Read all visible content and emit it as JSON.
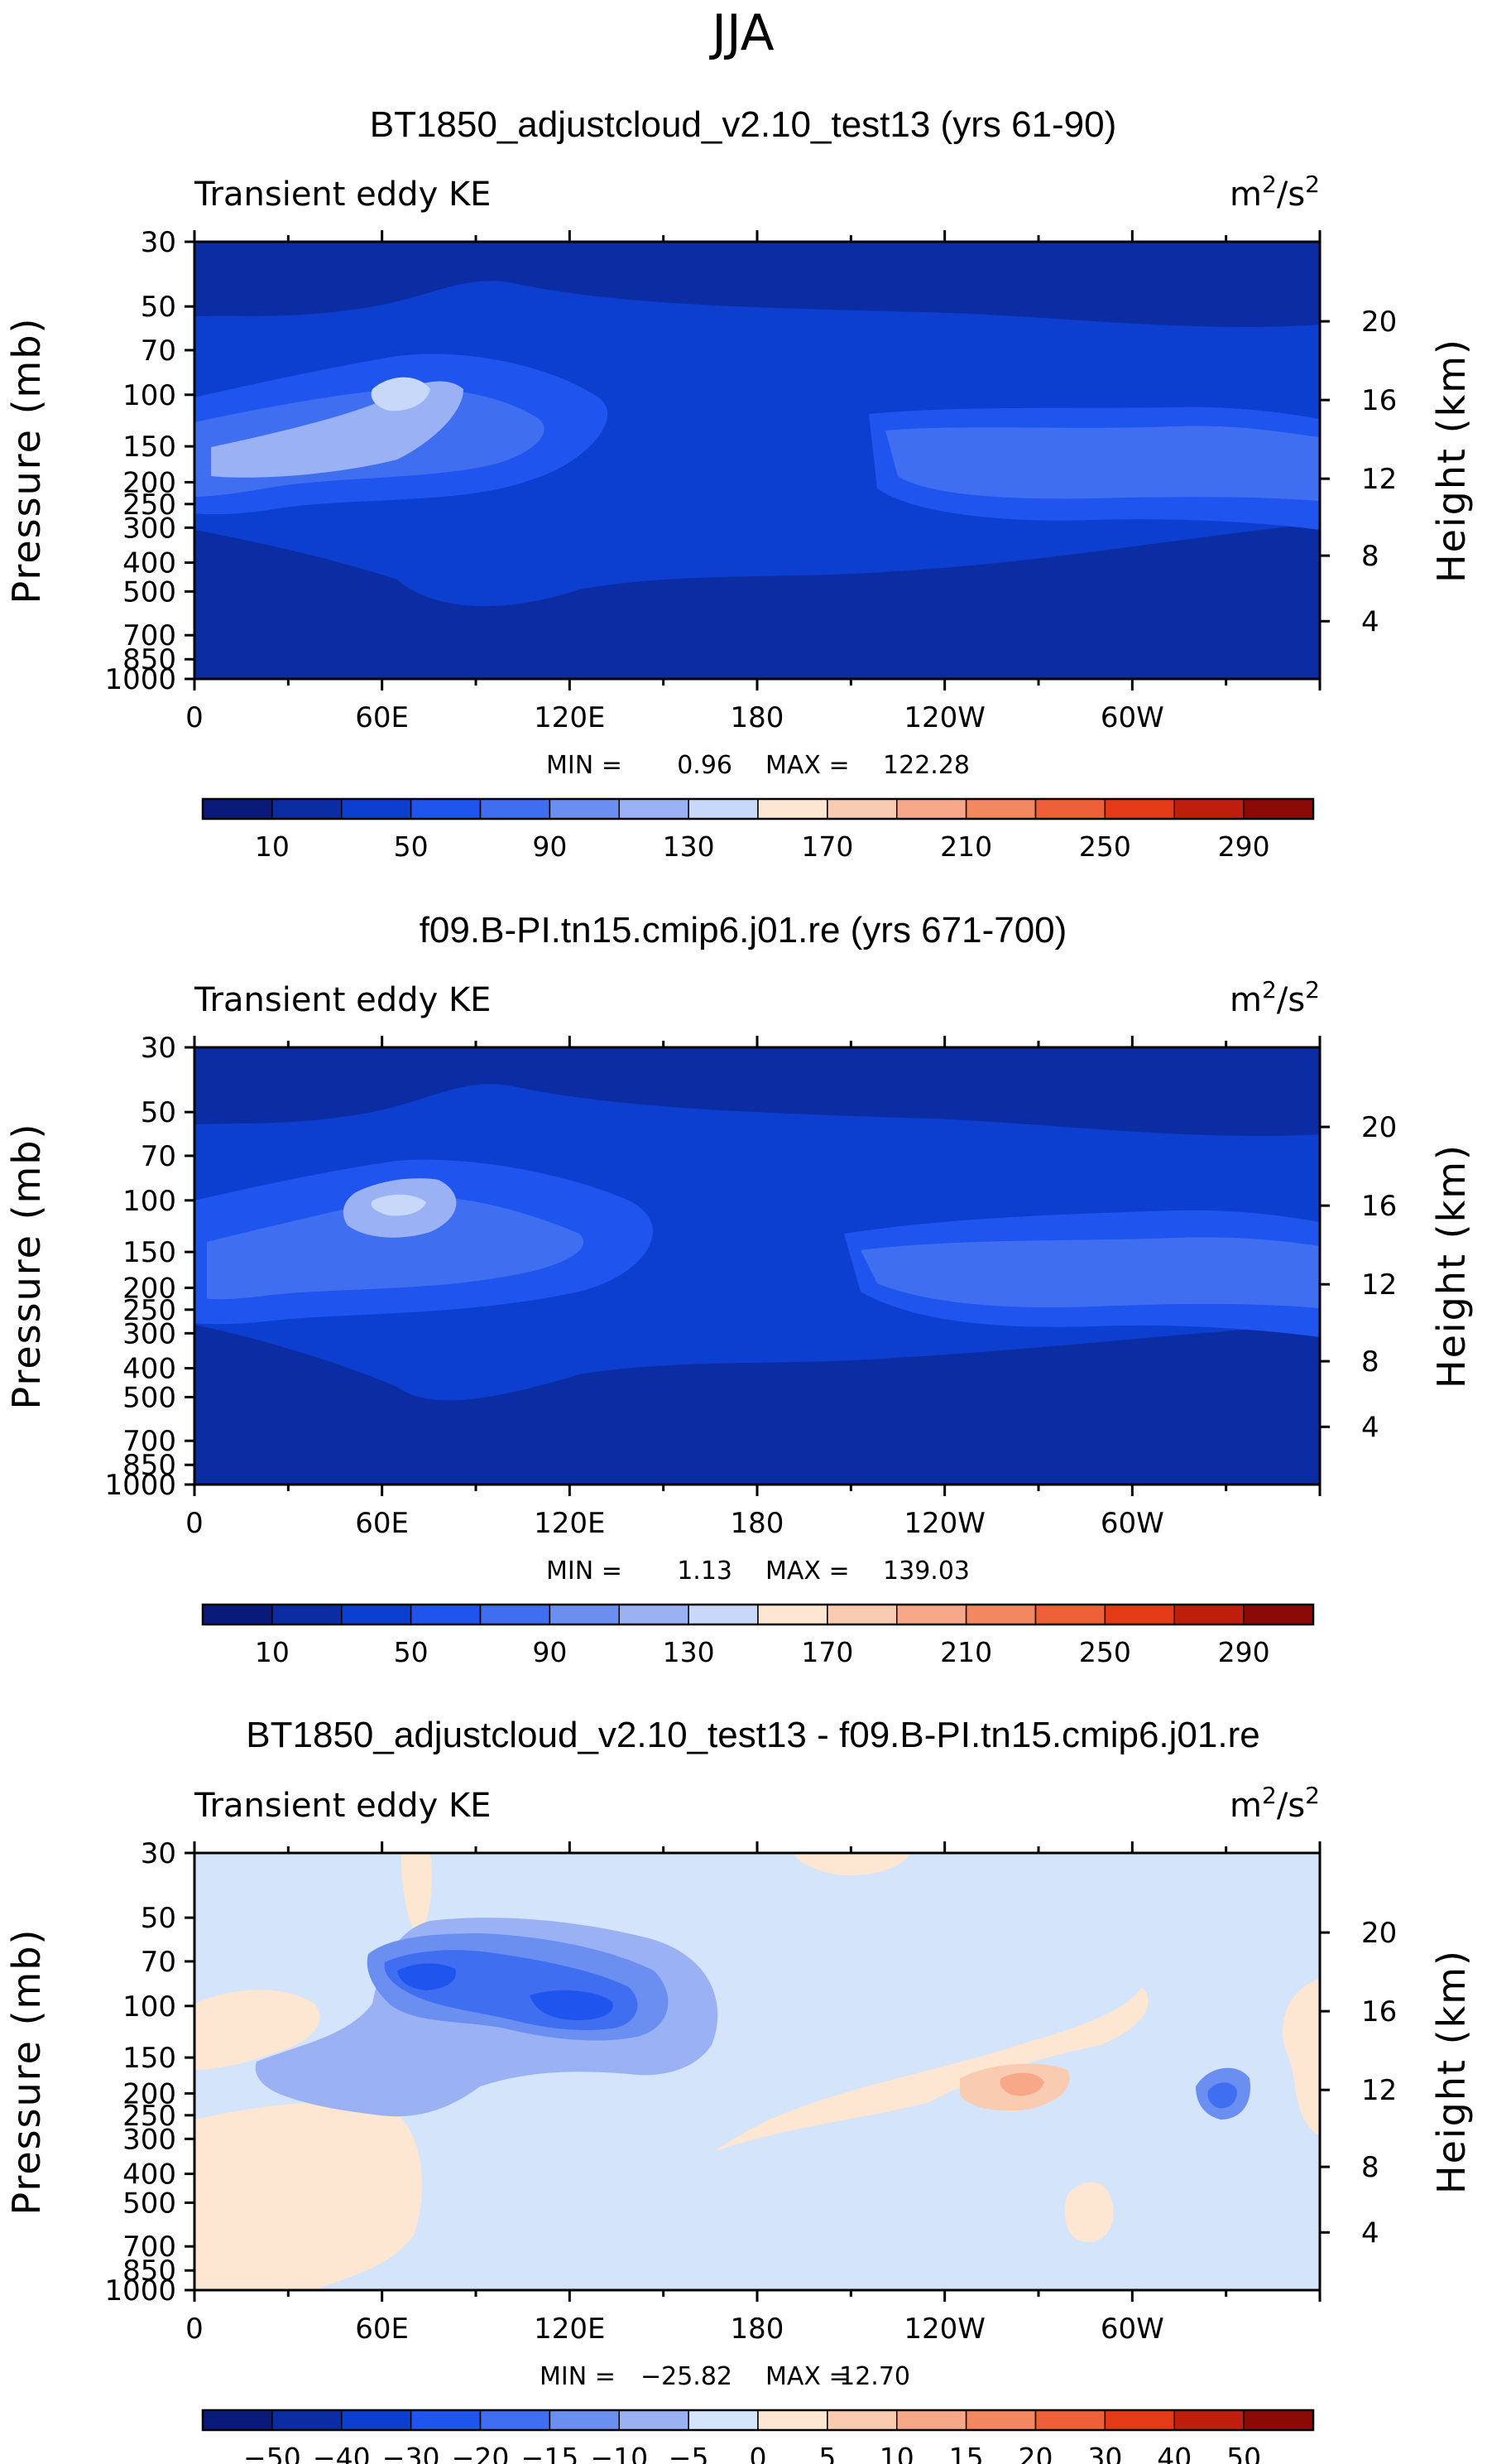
{
  "suptitle": "JJA",
  "chart_data": [
    {
      "type": "heatmap",
      "title": "BT1850_adjustcloud_v2.10_test13 (yrs 61-90)",
      "variable": "Transient eddy KE",
      "units_base": "m",
      "units_exp1": "2",
      "units_mid": "/s",
      "units_exp2": "2",
      "ylabel": "Pressure (mb)",
      "y2label": "Height (km)",
      "yticks": [
        "30",
        "50",
        "70",
        "100",
        "150",
        "200",
        "250",
        "300",
        "400",
        "500",
        "700",
        "850",
        "1000"
      ],
      "y2ticks": [
        "20",
        "16",
        "12",
        "8",
        "4"
      ],
      "xticks": [
        "0",
        "60E",
        "120E",
        "180",
        "120W",
        "60W"
      ],
      "min_label": "MIN =",
      "min_value": "0.96",
      "max_label": "MAX =",
      "max_value": "122.28",
      "colorbar_labels": [
        "10",
        "50",
        "90",
        "130",
        "170",
        "210",
        "250",
        "290"
      ],
      "colorbar_colors": [
        "#0a1a7a",
        "#0b2ca3",
        "#0c3ed0",
        "#1f55ee",
        "#3f6ff0",
        "#6b8ff0",
        "#9ab2f3",
        "#c7d8f8",
        "#fde6d2",
        "#f9cbb0",
        "#f6a888",
        "#f28760",
        "#ee6038",
        "#e53a17",
        "#bf1e0c",
        "#8c0a05"
      ]
    },
    {
      "type": "heatmap",
      "title": "f09.B-PI.tn15.cmip6.j01.re (yrs 671-700)",
      "variable": "Transient eddy KE",
      "units_base": "m",
      "units_exp1": "2",
      "units_mid": "/s",
      "units_exp2": "2",
      "ylabel": "Pressure (mb)",
      "y2label": "Height (km)",
      "yticks": [
        "30",
        "50",
        "70",
        "100",
        "150",
        "200",
        "250",
        "300",
        "400",
        "500",
        "700",
        "850",
        "1000"
      ],
      "y2ticks": [
        "20",
        "16",
        "12",
        "8",
        "4"
      ],
      "xticks": [
        "0",
        "60E",
        "120E",
        "180",
        "120W",
        "60W"
      ],
      "min_label": "MIN =",
      "min_value": "1.13",
      "max_label": "MAX =",
      "max_value": "139.03",
      "colorbar_labels": [
        "10",
        "50",
        "90",
        "130",
        "170",
        "210",
        "250",
        "290"
      ],
      "colorbar_colors": [
        "#0a1a7a",
        "#0b2ca3",
        "#0c3ed0",
        "#1f55ee",
        "#3f6ff0",
        "#6b8ff0",
        "#9ab2f3",
        "#c7d8f8",
        "#fde6d2",
        "#f9cbb0",
        "#f6a888",
        "#f28760",
        "#ee6038",
        "#e53a17",
        "#bf1e0c",
        "#8c0a05"
      ]
    },
    {
      "type": "heatmap",
      "title": "BT1850_adjustcloud_v2.10_test13 - f09.B-PI.tn15.cmip6.j01.re",
      "variable": "Transient eddy KE",
      "units_base": "m",
      "units_exp1": "2",
      "units_mid": "/s",
      "units_exp2": "2",
      "ylabel": "Pressure (mb)",
      "y2label": "Height (km)",
      "yticks": [
        "30",
        "50",
        "70",
        "100",
        "150",
        "200",
        "250",
        "300",
        "400",
        "500",
        "700",
        "850",
        "1000"
      ],
      "y2ticks": [
        "20",
        "16",
        "12",
        "8",
        "4"
      ],
      "xticks": [
        "0",
        "60E",
        "120E",
        "180",
        "120W",
        "60W"
      ],
      "min_label": "MIN =",
      "min_value": "−25.82",
      "max_label": "MAX =",
      "max_value": "12.70",
      "colorbar_labels": [
        "−50",
        "−40",
        "−30",
        "−20",
        "−15",
        "−10",
        "−5",
        "0",
        "5",
        "10",
        "15",
        "20",
        "30",
        "40",
        "50"
      ],
      "colorbar_colors": [
        "#0a1a7a",
        "#0b2ca3",
        "#0c3ed0",
        "#1f55ee",
        "#3f6ff0",
        "#6b8ff0",
        "#9ab2f3",
        "#d4e4fa",
        "#fde6d2",
        "#f9cbb0",
        "#f6a888",
        "#f28760",
        "#ee6038",
        "#e53a17",
        "#bf1e0c",
        "#8c0a05"
      ]
    }
  ]
}
